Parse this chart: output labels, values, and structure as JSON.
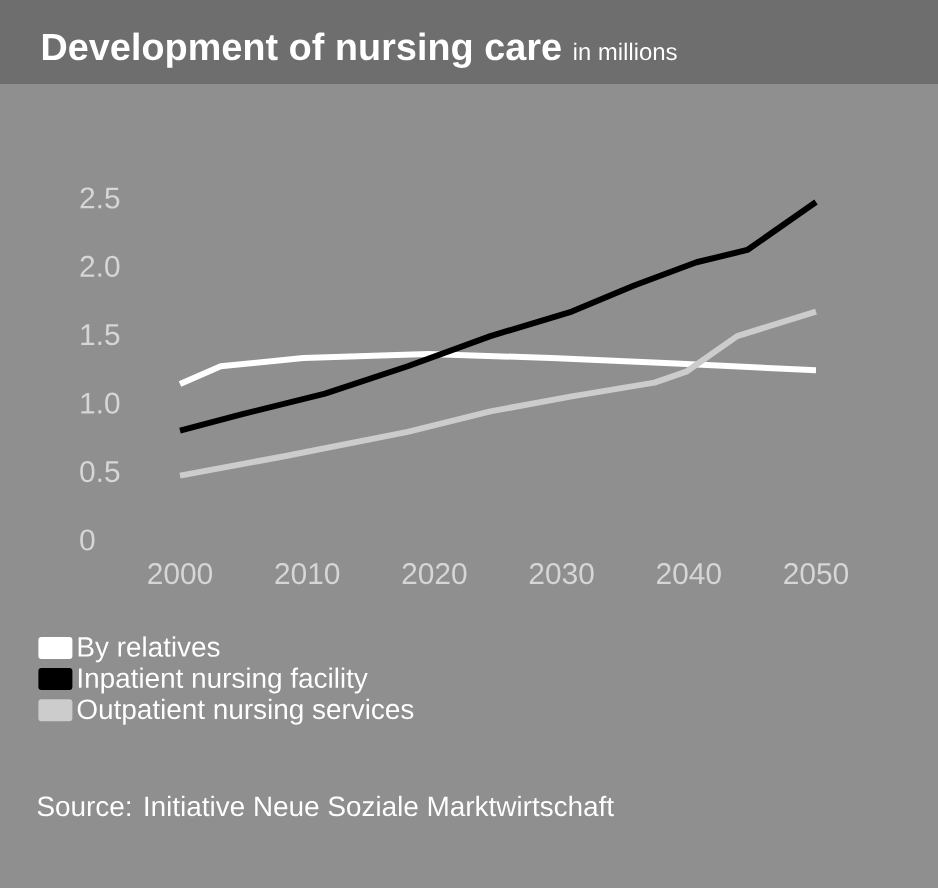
{
  "chart_data": {
    "type": "line",
    "title": "Development of nursing care",
    "subtitle": "in millions",
    "xlim": [
      2000,
      2050
    ],
    "ylim": [
      0,
      2.5
    ],
    "xticks": [
      2000,
      2010,
      2020,
      2030,
      2040,
      2050
    ],
    "yticks": [
      0,
      0.5,
      {
        "value": 1,
        "label": "1.0"
      },
      1.5,
      {
        "value": 2,
        "label": "2.0"
      },
      2.5
    ],
    "legend": "bottom",
    "marker": "none",
    "line_style": "solid",
    "series": [
      {
        "name": "By relatives",
        "color": "#ffffff",
        "x": [
          2000,
          2003.2,
          2009.7,
          2019.5,
          2029.2,
          2039,
          2050
        ],
        "values": [
          1.14,
          1.27,
          1.33,
          1.36,
          1.33,
          1.29,
          1.24
        ]
      },
      {
        "name": "Inpatient nursing facility",
        "color": "#000000",
        "x": [
          2000,
          2004.9,
          2011.4,
          2017.9,
          2024.4,
          2030.8,
          2035.7,
          2040.6,
          2044.6,
          2050
        ],
        "values": [
          0.8,
          0.92,
          1.07,
          1.27,
          1.49,
          1.67,
          1.86,
          2.03,
          2.12,
          2.47
        ]
      },
      {
        "name": "Outpatient nursing services",
        "color": "#cccccc",
        "x": [
          2000,
          2008.1,
          2017.9,
          2024.4,
          2030.8,
          2037.3,
          2039.8,
          2043.8,
          2050
        ],
        "values": [
          0.47,
          0.61,
          0.79,
          0.94,
          1.05,
          1.15,
          1.23,
          1.49,
          1.67
        ]
      }
    ],
    "annotations": [
      "Source: Initiative Neue Soziale Marktwirtschaft"
    ]
  }
}
